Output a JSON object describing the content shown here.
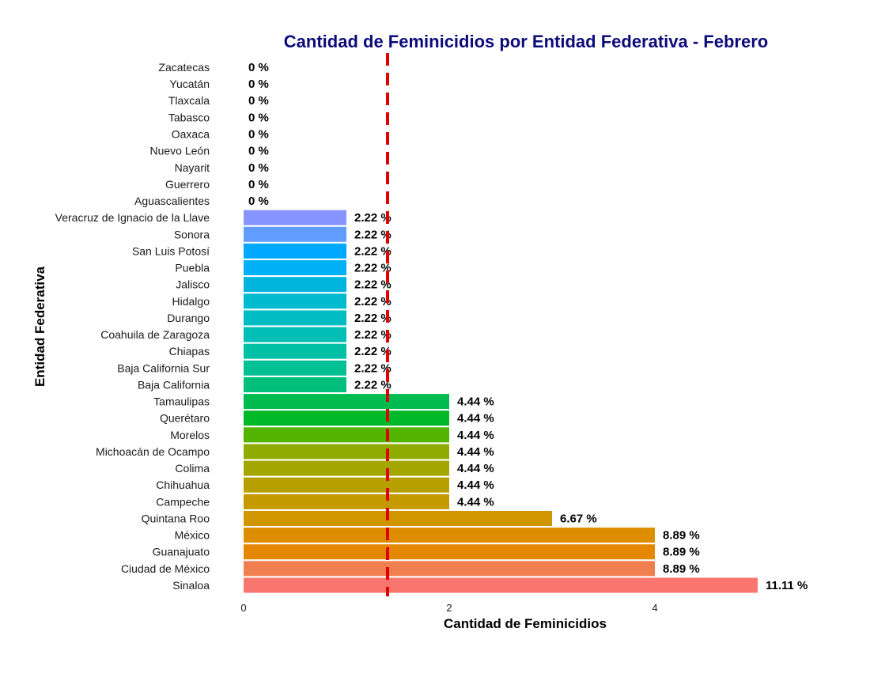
{
  "chart_data": {
    "type": "bar",
    "orientation": "horizontal",
    "title": "Cantidad de Feminicidios por Entidad Federativa - Febrero",
    "xlabel": "Cantidad de Feminicidios",
    "ylabel": "Entidad Federativa",
    "xlim": [
      0,
      5
    ],
    "xticks": [
      "0",
      "2",
      "4"
    ],
    "xtick_values": [
      0,
      2,
      4
    ],
    "reference_line": {
      "x": 1.4,
      "style": "dashed",
      "color": "#e00000"
    },
    "grid": false,
    "legend": "none",
    "categories": [
      "Sinaloa",
      "Ciudad de México",
      "Guanajuato",
      "México",
      "Quintana Roo",
      "Campeche",
      "Chihuahua",
      "Colima",
      "Michoacán de Ocampo",
      "Morelos",
      "Querétaro",
      "Tamaulipas",
      "Baja California",
      "Baja California Sur",
      "Chiapas",
      "Coahuila de Zaragoza",
      "Durango",
      "Hidalgo",
      "Jalisco",
      "Puebla",
      "San Luis Potosí",
      "Sonora",
      "Veracruz de Ignacio de la Llave",
      "Aguascalientes",
      "Guerrero",
      "Nayarit",
      "Nuevo León",
      "Oaxaca",
      "Tabasco",
      "Tlaxcala",
      "Yucatán",
      "Zacatecas"
    ],
    "values": [
      5,
      4,
      4,
      4,
      3,
      2,
      2,
      2,
      2,
      2,
      2,
      2,
      1,
      1,
      1,
      1,
      1,
      1,
      1,
      1,
      1,
      1,
      1,
      0,
      0,
      0,
      0,
      0,
      0,
      0,
      0,
      0
    ],
    "labels": [
      "11.11 %",
      "8.89 %",
      "8.89 %",
      "8.89 %",
      "6.67 %",
      "4.44 %",
      "4.44 %",
      "4.44 %",
      "4.44 %",
      "4.44 %",
      "4.44 %",
      "4.44 %",
      "2.22 %",
      "2.22 %",
      "2.22 %",
      "2.22 %",
      "2.22 %",
      "2.22 %",
      "2.22 %",
      "2.22 %",
      "2.22 %",
      "2.22 %",
      "2.22 %",
      "0 %",
      "0 %",
      "0 %",
      "0 %",
      "0 %",
      "0 %",
      "0 %",
      "0 %",
      "0 %"
    ],
    "colors": [
      "#f8766d",
      "#ef7f4f",
      "#e58700",
      "#dc8e00",
      "#d19500",
      "#c49a00",
      "#b79f00",
      "#a3a500",
      "#8fab00",
      "#53b400",
      "#00b928",
      "#00bc50",
      "#00bf7d",
      "#00c094",
      "#00c1a5",
      "#00bfb7",
      "#00bdc4",
      "#00bad0",
      "#00b5dd",
      "#00b0f6",
      "#00a8ff",
      "#619cff",
      "#8793ff",
      "#9d8afc",
      "#b983ff",
      "#c77cff",
      "#db72fb",
      "#e76bf3",
      "#f564e3",
      "#fd61d1",
      "#ff62bc",
      "#ff67a4"
    ]
  }
}
